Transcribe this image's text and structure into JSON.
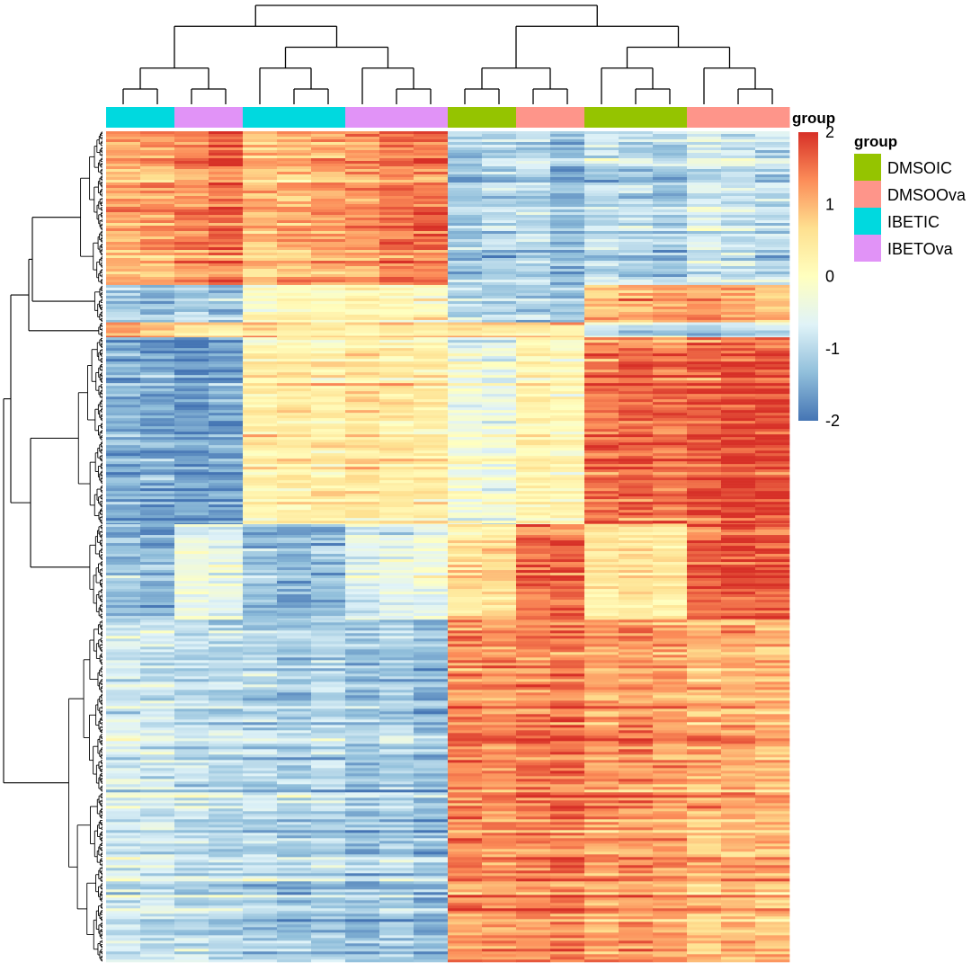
{
  "chart_data": {
    "type": "heatmap",
    "title": "",
    "samples": [
      {
        "id": "s1",
        "group": "IBETIC"
      },
      {
        "id": "s2",
        "group": "IBETIC"
      },
      {
        "id": "s3",
        "group": "IBETOva"
      },
      {
        "id": "s4",
        "group": "IBETOva"
      },
      {
        "id": "s5",
        "group": "IBETIC"
      },
      {
        "id": "s6",
        "group": "IBETIC"
      },
      {
        "id": "s7",
        "group": "IBETIC"
      },
      {
        "id": "s8",
        "group": "IBETOva"
      },
      {
        "id": "s9",
        "group": "IBETOva"
      },
      {
        "id": "s10",
        "group": "IBETOva"
      },
      {
        "id": "s11",
        "group": "DMSOIC"
      },
      {
        "id": "s12",
        "group": "DMSOIC"
      },
      {
        "id": "s13",
        "group": "DMSOOva"
      },
      {
        "id": "s14",
        "group": "DMSOOva"
      },
      {
        "id": "s15",
        "group": "DMSOIC"
      },
      {
        "id": "s16",
        "group": "DMSOIC"
      },
      {
        "id": "s17",
        "group": "DMSOIC"
      },
      {
        "id": "s18",
        "group": "DMSOOva"
      },
      {
        "id": "s19",
        "group": "DMSOOva"
      },
      {
        "id": "s20",
        "group": "DMSOOva"
      }
    ],
    "gene_clusters": [
      {
        "name": "cluster-1",
        "fraction": 0.185,
        "means": [
          1.0,
          1.1,
          1.3,
          1.5,
          0.9,
          1.0,
          1.1,
          1.2,
          1.4,
          1.5,
          -1.2,
          -1.1,
          -1.0,
          -1.3,
          -0.9,
          -1.0,
          -1.2,
          -0.7,
          -0.8,
          -0.9
        ]
      },
      {
        "name": "cluster-2",
        "fraction": 0.045,
        "means": [
          -1.1,
          -1.2,
          -1.0,
          -1.1,
          0.1,
          0.2,
          0.0,
          0.3,
          0.2,
          0.1,
          -0.8,
          -0.9,
          -1.0,
          -1.2,
          1.0,
          1.1,
          1.2,
          1.3,
          1.1,
          1.0
        ]
      },
      {
        "name": "cluster-3",
        "fraction": 0.018,
        "means": [
          1.2,
          0.8,
          0.5,
          0.3,
          0.6,
          0.4,
          0.2,
          0.3,
          0.5,
          0.4,
          0.6,
          0.5,
          0.3,
          0.4,
          -0.8,
          -1.0,
          -0.9,
          -1.2,
          -1.0,
          -1.1
        ]
      },
      {
        "name": "cluster-4",
        "fraction": 0.225,
        "means": [
          -1.5,
          -1.6,
          -1.7,
          -1.6,
          0.3,
          0.4,
          0.3,
          0.5,
          0.4,
          0.3,
          -0.3,
          -0.4,
          0.2,
          0.1,
          1.5,
          1.6,
          1.5,
          1.7,
          1.8,
          1.8
        ]
      },
      {
        "name": "cluster-5",
        "fraction": 0.115,
        "means": [
          -1.3,
          -1.4,
          -0.4,
          -0.5,
          -1.3,
          -1.4,
          -1.3,
          -0.6,
          -0.5,
          -0.4,
          0.5,
          0.6,
          1.5,
          1.6,
          0.5,
          0.6,
          0.4,
          1.6,
          1.7,
          1.7
        ]
      },
      {
        "name": "cluster-6",
        "fraction": 0.412,
        "means": [
          -0.7,
          -0.8,
          -0.9,
          -1.0,
          -1.0,
          -1.1,
          -1.0,
          -1.2,
          -1.1,
          -1.3,
          1.3,
          1.3,
          1.4,
          1.5,
          1.2,
          1.3,
          1.2,
          1.0,
          1.1,
          1.0
        ]
      }
    ],
    "color_scale": {
      "min": -2,
      "max": 2,
      "ticks": [
        "2",
        "1",
        "0",
        "-1",
        "-2"
      ],
      "colors": [
        "#4575b4",
        "#91bfdb",
        "#e0f3f8",
        "#ffffbf",
        "#fee090",
        "#fc8d59",
        "#d73027"
      ]
    },
    "annotation": {
      "title": "group",
      "legend_title": "group",
      "categories": [
        {
          "name": "DMSOIC",
          "label": "DMSOIC",
          "color": "#95c400"
        },
        {
          "name": "DMSOOva",
          "label": "DMSOOva",
          "color": "#fe958a"
        },
        {
          "name": "IBETIC",
          "label": "IBETIC",
          "color": "#00d9df"
        },
        {
          "name": "IBETOva",
          "label": "IBETOva",
          "color": "#e193f7"
        }
      ]
    },
    "column_dendrogram": "((((s1,s2),(s3,s4)),((s5,(s6,s7)),(s8,(s9,s10)))),(((s11,s12),(s13,s14)),((s15,(s16,s17)),(s18,(s19,s20)))))",
    "row_dendrogram": "hierarchical clustering over ~1000 genes in 6 major clusters"
  }
}
